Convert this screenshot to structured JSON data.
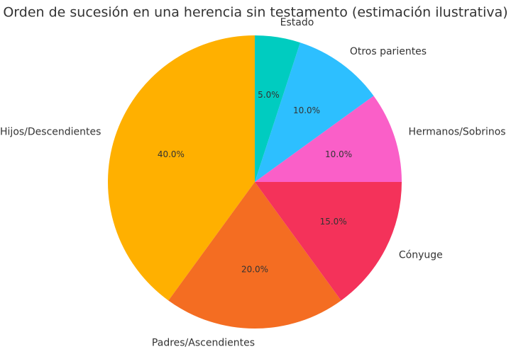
{
  "chart_data": {
    "type": "pie",
    "title": "Orden de sucesión en una herencia sin testamento (estimación ilustrativa)",
    "categories": [
      "Hijos/Descendientes",
      "Padres/Ascendientes",
      "Cónyuge",
      "Hermanos/Sobrinos",
      "Otros parientes",
      "Estado"
    ],
    "values": [
      40,
      20,
      15,
      10,
      10,
      5
    ],
    "value_labels": [
      "40.0%",
      "20.0%",
      "15.0%",
      "10.0%",
      "10.0%",
      "5.0%"
    ],
    "colors": [
      "#ffb000",
      "#f46d22",
      "#f4325a",
      "#fa5fc8",
      "#2dbfff",
      "#00ccc0"
    ]
  }
}
